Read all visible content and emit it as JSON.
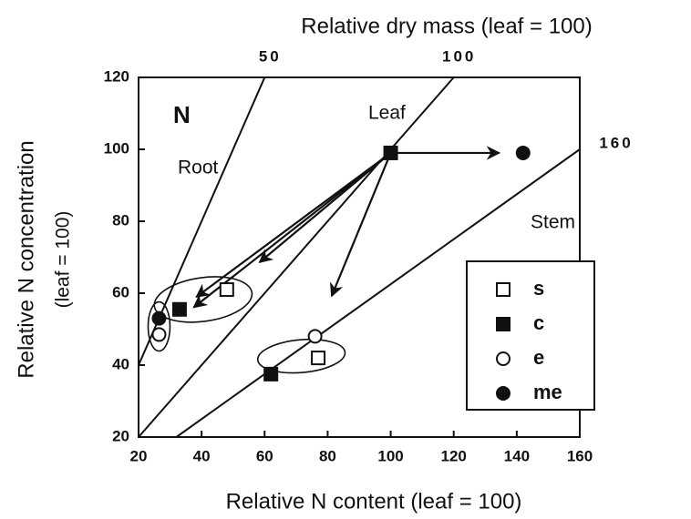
{
  "chart_data": {
    "type": "scatter",
    "title": "Relative dry mass (leaf = 100)",
    "xlabel": "Relative N content (leaf = 100)",
    "ylabel": [
      "Relative N concentration",
      "(leaf = 100)"
    ],
    "xlim": [
      20,
      160
    ],
    "xticks": [
      20,
      40,
      60,
      80,
      100,
      120,
      140,
      160
    ],
    "ylim": [
      20,
      120
    ],
    "yticks": [
      20,
      40,
      60,
      80,
      100,
      120
    ],
    "mass_lines": [
      50,
      100,
      160
    ],
    "annotations": [
      "N",
      "Root",
      "Leaf",
      "Stem"
    ],
    "series": [
      {
        "name": "s",
        "marker": "square",
        "filled": false,
        "x": [
          48,
          77
        ],
        "y": [
          61,
          42
        ]
      },
      {
        "name": "c",
        "marker": "square",
        "filled": true,
        "x": [
          33,
          100,
          62
        ],
        "y": [
          55.5,
          99,
          37.5
        ]
      },
      {
        "name": "e",
        "marker": "circle",
        "filled": false,
        "x": [
          26.5,
          76
        ],
        "y": [
          48.5,
          48
        ]
      },
      {
        "name": "me",
        "marker": "circle",
        "filled": true,
        "x": [
          26.5,
          142
        ],
        "y": [
          53,
          99
        ]
      }
    ]
  }
}
